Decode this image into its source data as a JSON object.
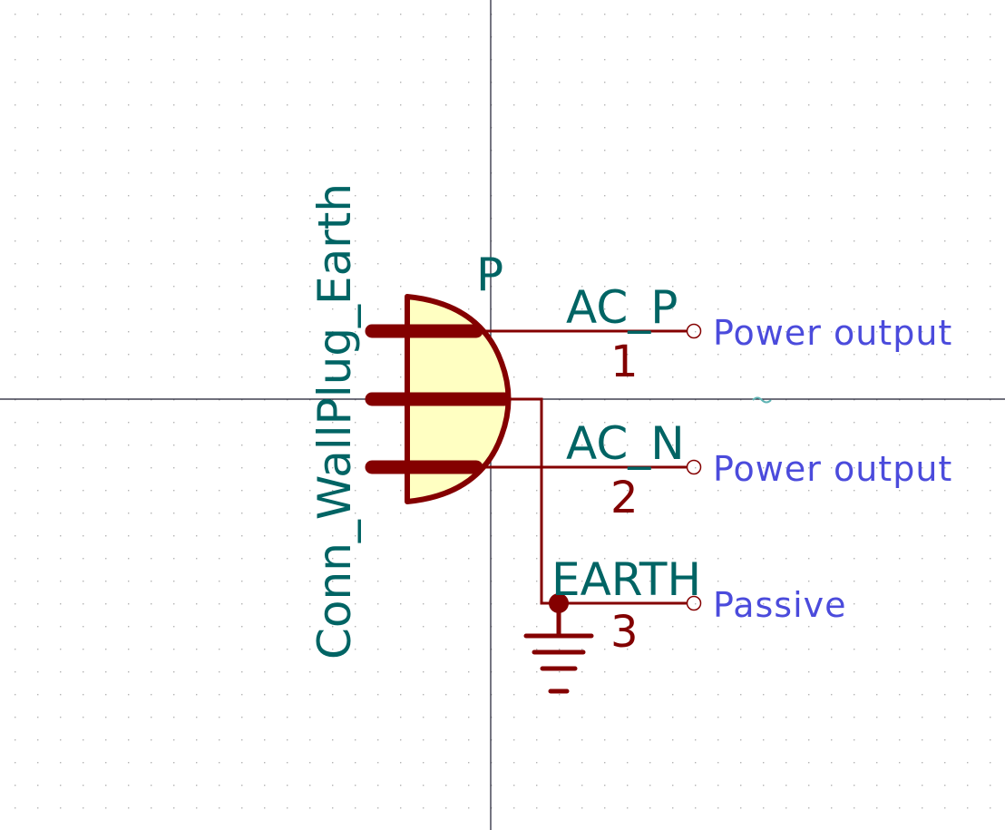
{
  "symbol": {
    "value": "Conn_WallPlug_Earth",
    "reference": "P"
  },
  "pins": [
    {
      "number": "1",
      "name": "AC_P",
      "electrical_type": "Power output"
    },
    {
      "number": "2",
      "name": "AC_N",
      "electrical_type": "Power output"
    },
    {
      "number": "3",
      "name": "EARTH",
      "electrical_type": "Passive"
    }
  ],
  "colors": {
    "background": "#ffffff",
    "grid": "#b4b4b4",
    "axes": "#1a1a2e",
    "body_outline": "#840000",
    "body_fill": "#ffffc2",
    "pin": "#840000",
    "field_text": "#006464",
    "pin_type_text": "#4b4bdc"
  }
}
